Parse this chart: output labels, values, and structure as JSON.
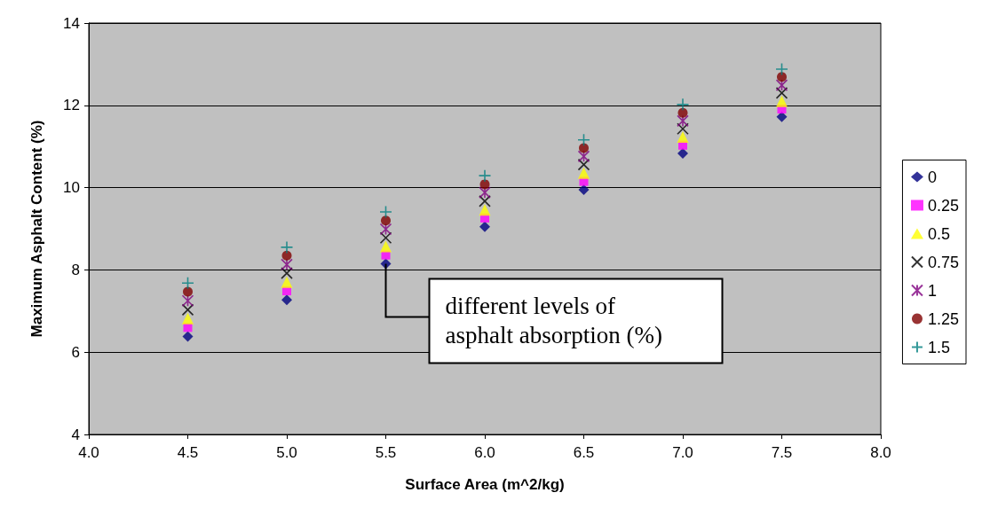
{
  "chart_data": {
    "type": "scatter",
    "xlabel": "Surface Area (m^2/kg)",
    "ylabel": "Maximum Asphalt Content (%)",
    "x": [
      4.5,
      5.0,
      5.5,
      6.0,
      6.5,
      7.0,
      7.5
    ],
    "series": [
      {
        "name": "0",
        "color": "#000080",
        "marker": "diamond",
        "values": [
          6.38,
          7.27,
          8.15,
          9.05,
          9.95,
          10.83,
          11.72
        ]
      },
      {
        "name": "0.25",
        "color": "#ff00ff",
        "marker": "square",
        "values": [
          6.6,
          7.49,
          8.36,
          9.26,
          10.15,
          11.03,
          11.91
        ]
      },
      {
        "name": "0.5",
        "color": "#ffff00",
        "marker": "triangle",
        "values": [
          6.82,
          7.7,
          8.57,
          9.46,
          10.35,
          11.23,
          12.1
        ]
      },
      {
        "name": "0.75",
        "color": "#000000",
        "marker": "x",
        "values": [
          7.03,
          7.92,
          8.78,
          9.67,
          10.56,
          11.43,
          12.3
        ]
      },
      {
        "name": "1",
        "color": "#800080",
        "marker": "cross",
        "values": [
          7.25,
          8.13,
          8.99,
          9.88,
          10.76,
          11.62,
          12.49
        ]
      },
      {
        "name": "1.25",
        "color": "#800000",
        "marker": "circle",
        "values": [
          7.47,
          8.35,
          9.2,
          10.08,
          10.96,
          11.82,
          12.69
        ]
      },
      {
        "name": "1.5",
        "color": "#008080",
        "marker": "plus",
        "values": [
          7.68,
          8.55,
          9.41,
          10.29,
          11.16,
          12.02,
          12.88
        ]
      }
    ],
    "xlim": [
      4.0,
      8.0
    ],
    "xticks": [
      {
        "value": 4,
        "label": "4.0"
      },
      {
        "value": 4.5,
        "label": "4.5"
      },
      {
        "value": 5,
        "label": "5.0"
      },
      {
        "value": 5.5,
        "label": "5.5"
      },
      {
        "value": 6,
        "label": "6.0"
      },
      {
        "value": 6.5,
        "label": "6.5"
      },
      {
        "value": 7,
        "label": "7.0"
      },
      {
        "value": 7.5,
        "label": "7.5"
      },
      {
        "value": 8,
        "label": "8.0"
      }
    ],
    "ylim": [
      4,
      14
    ],
    "yticks": [
      4,
      6,
      8,
      10,
      12,
      14
    ],
    "grid": "y",
    "legend": "right",
    "annotations": [
      {
        "text": "different levels of\nasphalt absorption (%)",
        "x": 5.5,
        "y": 8.15
      }
    ]
  }
}
